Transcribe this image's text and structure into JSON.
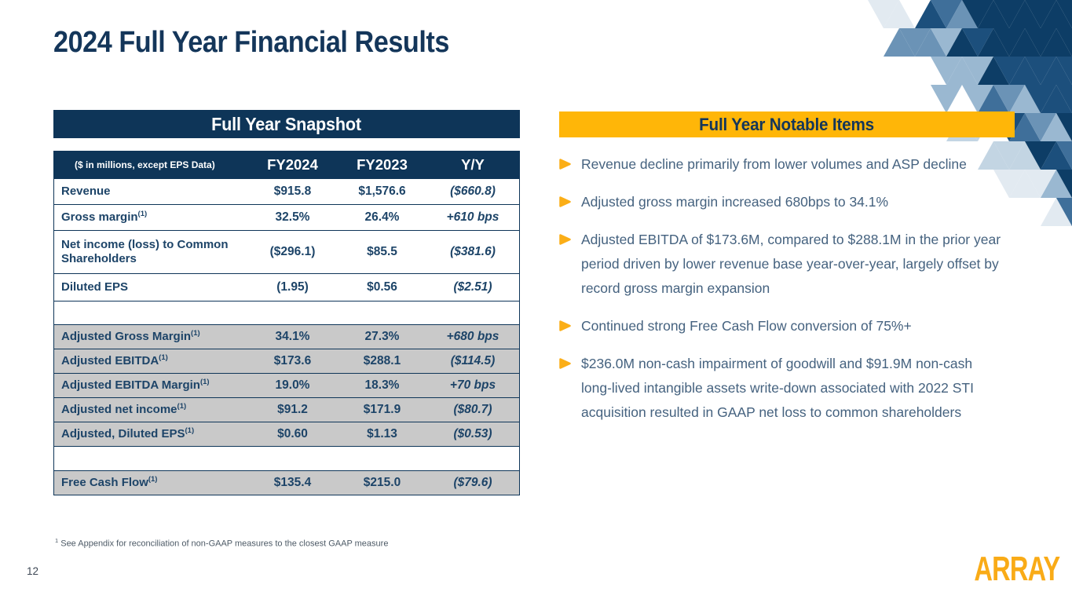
{
  "slide": {
    "title": "2024 Full Year Financial Results",
    "page_number": "12",
    "logo_text": "ARRAY"
  },
  "footnote": {
    "marker": "1",
    "text": " See Appendix for reconciliation of non-GAAP measures to the closest GAAP measure"
  },
  "colors": {
    "navy": "#0e3558",
    "table_text_navy": "#1d4468",
    "title_navy": "#14365a",
    "gold": "#ffb608",
    "bullet_gold": "#fbae17",
    "logo_gold": "#f9ab17",
    "row_gray": "#c9c9c9",
    "bullet_text": "#45627f"
  },
  "snapshot_table": {
    "title": "Full Year Snapshot",
    "col_headers": {
      "label": "($ in millions, except EPS Data)",
      "fy2024": "FY2024",
      "fy2023": "FY2023",
      "yoy": "Y/Y"
    },
    "rows": [
      {
        "type": "data",
        "shaded": false,
        "label": "Revenue",
        "sup": "",
        "fy2024": "$915.8",
        "fy2023": "$1,576.6",
        "yoy": "($660.8)"
      },
      {
        "type": "data",
        "shaded": false,
        "label": "Gross margin",
        "sup": "(1)",
        "fy2024": "32.5%",
        "fy2023": "26.4%",
        "yoy": "+610 bps"
      },
      {
        "type": "data",
        "shaded": false,
        "label": "Net income (loss) to Common Shareholders",
        "sup": "",
        "fy2024": "($296.1)",
        "fy2023": "$85.5",
        "yoy": "($381.6)"
      },
      {
        "type": "data",
        "shaded": false,
        "label": "Diluted EPS",
        "sup": "",
        "fy2024": "(1.95)",
        "fy2023": "$0.56",
        "yoy": "($2.51)"
      },
      {
        "type": "blank"
      },
      {
        "type": "data",
        "shaded": true,
        "label": "Adjusted Gross Margin",
        "sup": "(1)",
        "fy2024": "34.1%",
        "fy2023": "27.3%",
        "yoy": "+680 bps"
      },
      {
        "type": "data",
        "shaded": true,
        "label": "Adjusted EBITDA",
        "sup": "(1)",
        "fy2024": "$173.6",
        "fy2023": "$288.1",
        "yoy": "($114.5)"
      },
      {
        "type": "data",
        "shaded": true,
        "label": "Adjusted EBITDA Margin",
        "sup": "(1)",
        "fy2024": "19.0%",
        "fy2023": "18.3%",
        "yoy": "+70 bps"
      },
      {
        "type": "data",
        "shaded": true,
        "label": "Adjusted net income",
        "sup": "(1)",
        "fy2024": "$91.2",
        "fy2023": "$171.9",
        "yoy": "($80.7)"
      },
      {
        "type": "data",
        "shaded": true,
        "label": "Adjusted, Diluted EPS",
        "sup": "(1)",
        "fy2024": "$0.60",
        "fy2023": "$1.13",
        "yoy": "($0.53)"
      },
      {
        "type": "blank"
      },
      {
        "type": "data",
        "shaded": true,
        "label": "Free Cash Flow",
        "sup": "(1)",
        "fy2024": "$135.4",
        "fy2023": "$215.0",
        "yoy": "($79.6)"
      }
    ]
  },
  "notable_items": {
    "title": "Full Year Notable Items",
    "items": [
      "Revenue decline primarily from lower volumes and ASP decline",
      "Adjusted gross margin increased 680bps to 34.1%",
      "Adjusted EBITDA of $173.6M, compared to $288.1M in the prior year period driven by lower revenue base year-over-year, largely offset by record gross margin expansion",
      "Continued strong Free Cash Flow conversion of 75%+",
      "$236.0M non-cash impairment of goodwill and $91.9M non-cash long-lived intangible assets write-down associated with 2022 STI acquisition resulted in GAAP net loss to common shareholders"
    ]
  },
  "mosaic": {
    "palette": [
      "#0d3d66",
      "#1c4f7c",
      "#3f6f9a",
      "#6b93b6",
      "#9ab8d1",
      "#c3d5e3",
      "#e2eaf1"
    ]
  }
}
